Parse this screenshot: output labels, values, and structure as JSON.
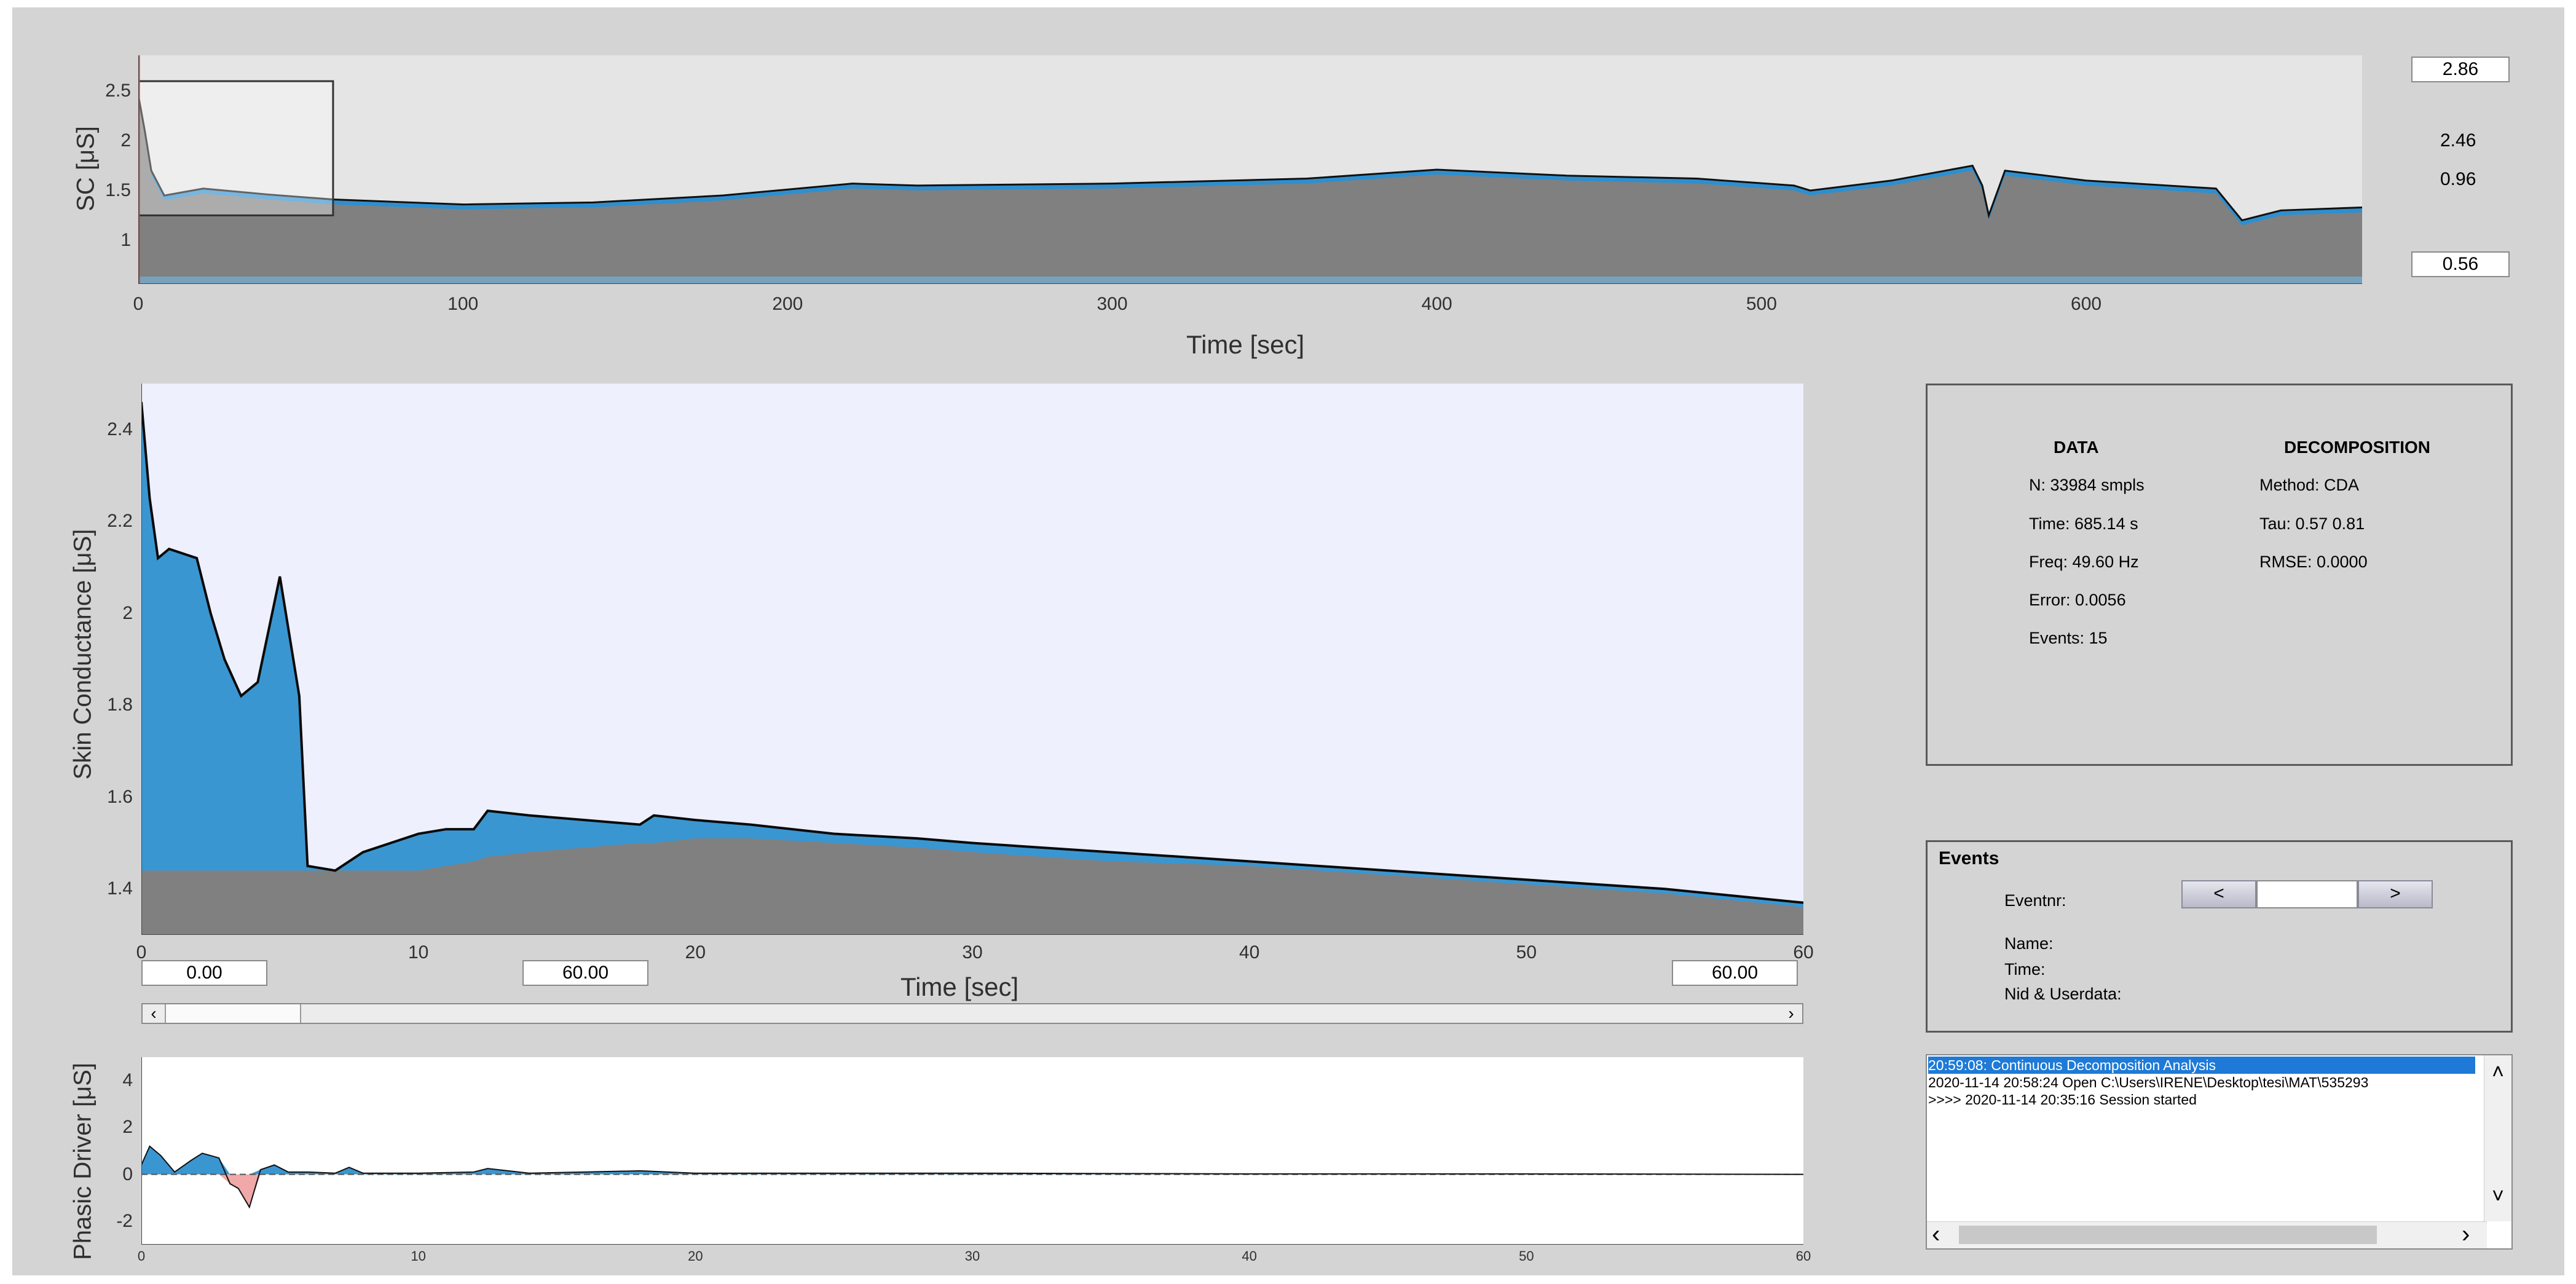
{
  "overview": {
    "ylabel": "SC [μS]",
    "xlabel": "Time [sec]",
    "yticks": [
      "2.5",
      "2",
      "1.5",
      "1"
    ],
    "xticks": [
      "0",
      "100",
      "200",
      "300",
      "400",
      "500",
      "600"
    ],
    "field_max": "2.86",
    "field_min": "0.56",
    "label_upper": "2.46",
    "label_lower": "0.96"
  },
  "main_plot": {
    "ylabel": "Skin Conductance [μS]",
    "xlabel": "Time [sec]",
    "yticks": [
      "2.4",
      "2.2",
      "2",
      "1.8",
      "1.6",
      "1.4"
    ],
    "xticks": [
      "0",
      "10",
      "20",
      "30",
      "40",
      "50",
      "60"
    ],
    "window_start": "0.00",
    "window_width": "60.00",
    "window_end": "60.00"
  },
  "scrollbar": {
    "left_arrow": "‹",
    "right_arrow": "›"
  },
  "phasic_plot": {
    "ylabel": "Phasic Driver [μS]",
    "yticks": [
      "4",
      "2",
      "0",
      "-2"
    ],
    "xticks": [
      "0",
      "10",
      "20",
      "30",
      "40",
      "50",
      "60"
    ]
  },
  "info_panel": {
    "data_header": "DATA",
    "decomp_header": "DECOMPOSITION",
    "data_lines": [
      "N: 33984 smpls",
      "Time: 685.14 s",
      "Freq: 49.60 Hz",
      "Error: 0.0056",
      "Events: 15"
    ],
    "decomp_lines": [
      "Method: CDA",
      "Tau: 0.57  0.81",
      "RMSE: 0.0000"
    ]
  },
  "events_panel": {
    "title": "Events",
    "eventnr_label": "Eventnr:",
    "prev_label": "<",
    "next_label": ">",
    "eventnr_value": "",
    "name_label": "Name:",
    "time_label": "Time:",
    "nid_label": "Nid & Userdata:"
  },
  "log": {
    "lines": [
      "20:59:08: Continuous Decomposition Analysis",
      "2020-11-14 20:58:24 Open C:\\Users\\IRENE\\Desktop\\tesi\\MAT\\535293",
      ">>>> 2020-11-14 20:35:16 Session started"
    ],
    "selected_index": 0,
    "scroll_left": "‹",
    "scroll_right": "›",
    "scroll_up": "˄",
    "scroll_down": "˅"
  },
  "chart_data": [
    {
      "type": "area",
      "title": "",
      "xlabel": "Time [sec]",
      "ylabel": "SC [μS]",
      "xlim": [
        0,
        685
      ],
      "ylim": [
        0.56,
        2.86
      ],
      "x": [
        0,
        2,
        4,
        8,
        20,
        40,
        60,
        100,
        140,
        180,
        220,
        240,
        300,
        360,
        400,
        440,
        480,
        510,
        515,
        540,
        565,
        568,
        570,
        575,
        600,
        640,
        648,
        660,
        685
      ],
      "series": [
        {
          "values": [
            2.46,
            2.1,
            1.7,
            1.45,
            1.52,
            1.46,
            1.41,
            1.36,
            1.38,
            1.45,
            1.57,
            1.55,
            1.57,
            1.62,
            1.71,
            1.65,
            1.62,
            1.55,
            1.5,
            1.6,
            1.75,
            1.55,
            1.25,
            1.7,
            1.6,
            1.52,
            1.2,
            1.3,
            1.33
          ]
        }
      ]
    },
    {
      "type": "area",
      "title": "",
      "xlabel": "Time [sec]",
      "ylabel": "Skin Conductance [μS]",
      "xlim": [
        0,
        60
      ],
      "ylim": [
        1.3,
        2.5
      ],
      "x": [
        0,
        0.3,
        0.6,
        1,
        2,
        2.5,
        3,
        3.6,
        4.2,
        5,
        5.7,
        6,
        7,
        8,
        9,
        10,
        11,
        12,
        12.5,
        14,
        16,
        18,
        18.5,
        20,
        22,
        25,
        28,
        30,
        35,
        40,
        45,
        50,
        55,
        60
      ],
      "series": [
        {
          "name": "",
          "values": [
            2.46,
            2.25,
            2.12,
            2.14,
            2.12,
            2.0,
            1.9,
            1.82,
            1.85,
            2.08,
            1.82,
            1.45,
            1.44,
            1.48,
            1.5,
            1.52,
            1.53,
            1.53,
            1.57,
            1.56,
            1.55,
            1.54,
            1.56,
            1.55,
            1.54,
            1.52,
            1.51,
            1.5,
            1.48,
            1.46,
            1.44,
            1.42,
            1.4,
            1.37
          ]
        },
        {
          "name": "",
          "values": [
            1.44,
            1.44,
            1.44,
            1.44,
            1.44,
            1.44,
            1.44,
            1.44,
            1.44,
            1.44,
            1.44,
            1.44,
            1.44,
            1.44,
            1.44,
            1.44,
            1.45,
            1.46,
            1.47,
            1.48,
            1.49,
            1.5,
            1.5,
            1.51,
            1.51,
            1.5,
            1.49,
            1.48,
            1.46,
            1.45,
            1.43,
            1.41,
            1.39,
            1.36
          ]
        }
      ]
    },
    {
      "type": "area",
      "title": "",
      "xlabel": "",
      "ylabel": "Phasic Driver [μS]",
      "xlim": [
        0,
        60
      ],
      "ylim": [
        -3,
        5
      ],
      "x": [
        0,
        0.3,
        0.7,
        1.2,
        1.8,
        2.2,
        2.8,
        3.2,
        3.5,
        3.9,
        4.3,
        4.8,
        5.3,
        6,
        7,
        7.5,
        8,
        10,
        12,
        12.5,
        14,
        18,
        20,
        30,
        40,
        50,
        60
      ],
      "series": [
        {
          "name": "",
          "values": [
            0.4,
            1.2,
            0.8,
            0.1,
            0.6,
            0.9,
            0.7,
            -0.4,
            -0.6,
            -1.4,
            0.2,
            0.4,
            0.1,
            0.1,
            0.05,
            0.3,
            0.05,
            0.05,
            0.1,
            0.25,
            0.05,
            0.15,
            0.05,
            0.05,
            0.02,
            0.02,
            0.0
          ]
        }
      ]
    }
  ]
}
